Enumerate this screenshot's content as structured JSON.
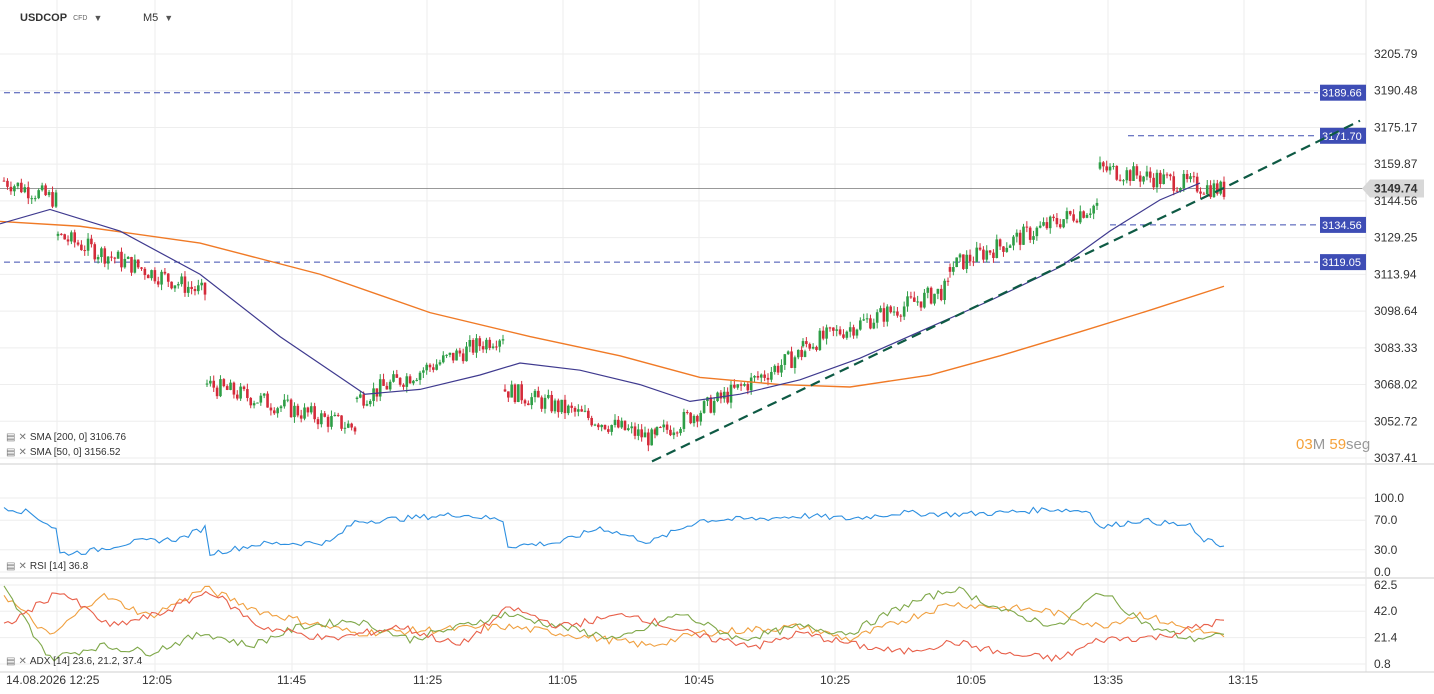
{
  "header": {
    "symbol": "USDCOP",
    "symbol_type": "CFD",
    "timeframe": "M5"
  },
  "legend": {
    "sma200": "SMA [200, 0] 3106.76",
    "sma50": "SMA [50, 0] 3156.52",
    "rsi": "RSI [14] 36.8",
    "adx": "ADX [14] 23.6, 21.2, 37.4"
  },
  "timer": {
    "minutes": "03",
    "m_unit": "M",
    "seconds": "59",
    "s_unit": "seg"
  },
  "colors": {
    "bull": "#2e9e46",
    "bear": "#d42b3a",
    "sma200": "#f07a26",
    "sma50": "#3f3a8f",
    "trend": "#0e5a44",
    "hline": "#3f4db0",
    "tag": "#3e4db5",
    "rsi": "#2d8fe0",
    "adx_orange": "#f0a040",
    "adx_green": "#7fa84a",
    "adx_red": "#e8604a"
  },
  "chart_data": [
    {
      "type": "candlestick",
      "panel": "price",
      "y_ticks": [
        "3205.79",
        "3190.48",
        "3175.17",
        "3159.87",
        "3144.56",
        "3129.25",
        "3113.94",
        "3098.64",
        "3083.33",
        "3068.02",
        "3052.72",
        "3037.41"
      ],
      "ylim": [
        3037.41,
        3205.79
      ],
      "x_ticks": [
        "14.08.2026 12:25",
        "12:05",
        "11:45",
        "11:25",
        "11:05",
        "10:45",
        "10:25",
        "10:05",
        "13:35",
        "13:15"
      ],
      "current_price": "3149.74",
      "levels": [
        {
          "value": 3189.66,
          "label": "3189.66"
        },
        {
          "value": 3171.7,
          "label": "3171.70"
        },
        {
          "value": 3134.56,
          "label": "3134.56"
        },
        {
          "value": 3119.05,
          "label": "3119.05"
        }
      ],
      "series": [
        {
          "name": "SMA [200, 0]",
          "type": "line",
          "points": [
            [
              0,
              3136
            ],
            [
              80,
              3134
            ],
            [
              200,
              3127
            ],
            [
              320,
              3114
            ],
            [
              430,
              3098
            ],
            [
              530,
              3088
            ],
            [
              620,
              3080
            ],
            [
              700,
              3071
            ],
            [
              780,
              3068
            ],
            [
              850,
              3067
            ],
            [
              930,
              3072
            ],
            [
              1000,
              3080
            ],
            [
              1080,
              3090
            ],
            [
              1150,
              3099
            ],
            [
              1224,
              3109
            ]
          ]
        },
        {
          "name": "SMA [50, 0]",
          "type": "line",
          "points": [
            [
              0,
              3135
            ],
            [
              50,
              3141
            ],
            [
              120,
              3132
            ],
            [
              200,
              3114
            ],
            [
              280,
              3088
            ],
            [
              365,
              3064
            ],
            [
              420,
              3066
            ],
            [
              480,
              3072
            ],
            [
              520,
              3077
            ],
            [
              580,
              3074
            ],
            [
              640,
              3068
            ],
            [
              690,
              3061
            ],
            [
              740,
              3064
            ],
            [
              800,
              3070
            ],
            [
              860,
              3079
            ],
            [
              930,
              3092
            ],
            [
              990,
              3103
            ],
            [
              1060,
              3117
            ],
            [
              1110,
              3132
            ],
            [
              1160,
              3145
            ],
            [
              1200,
              3152
            ]
          ]
        },
        {
          "name": "trendline",
          "type": "line",
          "points": [
            [
              652,
              3036
            ],
            [
              1224,
              3150
            ],
            [
              1360,
              3178
            ]
          ]
        }
      ],
      "candle_segments": [
        {
          "x0": 4,
          "x1": 56,
          "start": 3153,
          "end": 3145
        },
        {
          "x0": 58,
          "x1": 205,
          "start": 3130,
          "end": 3106
        },
        {
          "x0": 207,
          "x1": 355,
          "start": 3068,
          "end": 3050
        },
        {
          "x0": 357,
          "x1": 503,
          "start": 3062,
          "end": 3089
        },
        {
          "x0": 505,
          "x1": 655,
          "start": 3066,
          "end": 3045
        },
        {
          "x0": 657,
          "x1": 805,
          "start": 3047,
          "end": 3082
        },
        {
          "x0": 803,
          "x1": 948,
          "start": 3084,
          "end": 3108
        },
        {
          "x0": 950,
          "x1": 1097,
          "start": 3117,
          "end": 3143
        },
        {
          "x0": 1100,
          "x1": 1224,
          "start": 3158,
          "end": 3149
        }
      ]
    },
    {
      "type": "line",
      "panel": "rsi",
      "y_ticks": [
        "100.0",
        "70.0",
        "30.0",
        "0.0"
      ],
      "ylim": [
        0,
        100
      ],
      "series": [
        {
          "name": "RSI [14]",
          "values": [
            [
              4,
              88
            ],
            [
              30,
              80
            ],
            [
              56,
              58
            ],
            [
              60,
              25
            ],
            [
              90,
              28
            ],
            [
              130,
              40
            ],
            [
              180,
              45
            ],
            [
              205,
              60
            ],
            [
              210,
              25
            ],
            [
              260,
              38
            ],
            [
              330,
              40
            ],
            [
              355,
              68
            ],
            [
              400,
              72
            ],
            [
              460,
              78
            ],
            [
              503,
              70
            ],
            [
              508,
              35
            ],
            [
              560,
              40
            ],
            [
              600,
              60
            ],
            [
              650,
              40
            ],
            [
              700,
              70
            ],
            [
              760,
              72
            ],
            [
              805,
              76
            ],
            [
              850,
              72
            ],
            [
              900,
              80
            ],
            [
              955,
              78
            ],
            [
              1000,
              80
            ],
            [
              1050,
              85
            ],
            [
              1090,
              82
            ],
            [
              1100,
              60
            ],
            [
              1140,
              70
            ],
            [
              1190,
              62
            ],
            [
              1200,
              45
            ],
            [
              1224,
              35
            ]
          ]
        }
      ]
    },
    {
      "type": "line",
      "panel": "adx",
      "y_ticks": [
        "62.5",
        "42.0",
        "21.4",
        "0.8"
      ],
      "ylim": [
        0.8,
        62.5
      ],
      "series": [
        {
          "name": "ADX orange",
          "values": [
            [
              4,
              55
            ],
            [
              50,
              22
            ],
            [
              100,
              55
            ],
            [
              150,
              38
            ],
            [
              205,
              60
            ],
            [
              260,
              42
            ],
            [
              355,
              25
            ],
            [
              450,
              28
            ],
            [
              505,
              30
            ],
            [
              560,
              25
            ],
            [
              650,
              15
            ],
            [
              700,
              25
            ],
            [
              800,
              30
            ],
            [
              850,
              20
            ],
            [
              950,
              48
            ],
            [
              1000,
              45
            ],
            [
              1050,
              42
            ],
            [
              1100,
              30
            ],
            [
              1140,
              40
            ],
            [
              1180,
              30
            ],
            [
              1224,
              22
            ]
          ]
        },
        {
          "name": "ADX green",
          "values": [
            [
              4,
              60
            ],
            [
              50,
              5
            ],
            [
              100,
              15
            ],
            [
              150,
              10
            ],
            [
              205,
              25
            ],
            [
              250,
              15
            ],
            [
              300,
              30
            ],
            [
              355,
              35
            ],
            [
              410,
              20
            ],
            [
              460,
              30
            ],
            [
              505,
              40
            ],
            [
              560,
              30
            ],
            [
              620,
              20
            ],
            [
              680,
              40
            ],
            [
              740,
              20
            ],
            [
              800,
              30
            ],
            [
              850,
              25
            ],
            [
              900,
              45
            ],
            [
              955,
              60
            ],
            [
              1010,
              40
            ],
            [
              1060,
              30
            ],
            [
              1100,
              58
            ],
            [
              1150,
              30
            ],
            [
              1190,
              20
            ],
            [
              1224,
              24
            ]
          ]
        },
        {
          "name": "ADX red",
          "values": [
            [
              4,
              30
            ],
            [
              60,
              58
            ],
            [
              110,
              30
            ],
            [
              160,
              40
            ],
            [
              210,
              58
            ],
            [
              260,
              30
            ],
            [
              330,
              20
            ],
            [
              400,
              30
            ],
            [
              460,
              15
            ],
            [
              510,
              45
            ],
            [
              560,
              30
            ],
            [
              630,
              40
            ],
            [
              700,
              22
            ],
            [
              760,
              15
            ],
            [
              800,
              25
            ],
            [
              860,
              15
            ],
            [
              900,
              10
            ],
            [
              955,
              18
            ],
            [
              1010,
              8
            ],
            [
              1060,
              5
            ],
            [
              1100,
              20
            ],
            [
              1160,
              22
            ],
            [
              1224,
              35
            ]
          ]
        }
      ]
    }
  ]
}
